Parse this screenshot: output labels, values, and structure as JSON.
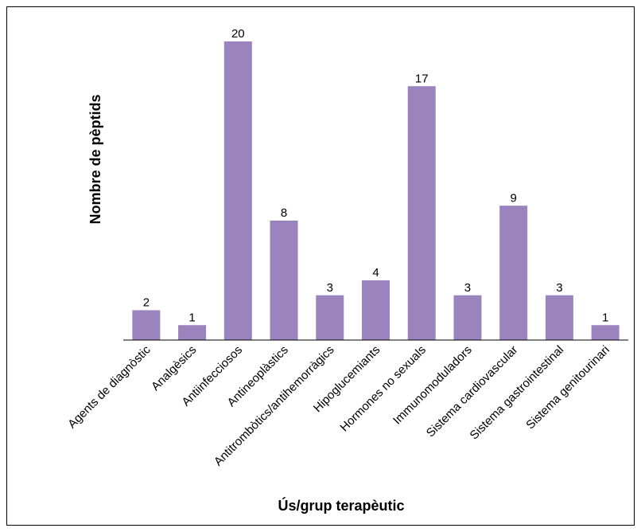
{
  "chart_data": {
    "type": "bar",
    "title": "",
    "xlabel": "Ús/grup terapèutic",
    "ylabel": "Nombre de pèptids",
    "categories": [
      "Agents de diagnòstic",
      "Analgèsics",
      "Antiinfecciosos",
      "Antineoplàstics",
      "Antitrombòtics/antihemorràgics",
      "Hipoglucemiants",
      "Hormones no sexuals",
      "Immunomoduladors",
      "Sistema cardiovascular",
      "Sistema gastrointestinal",
      "Sistema genitourinari"
    ],
    "values": [
      2,
      1,
      20,
      8,
      3,
      4,
      17,
      3,
      9,
      3,
      1
    ],
    "ylim": [
      0,
      20
    ],
    "bar_color": "#9b84be",
    "grid": false,
    "legend": "none"
  }
}
